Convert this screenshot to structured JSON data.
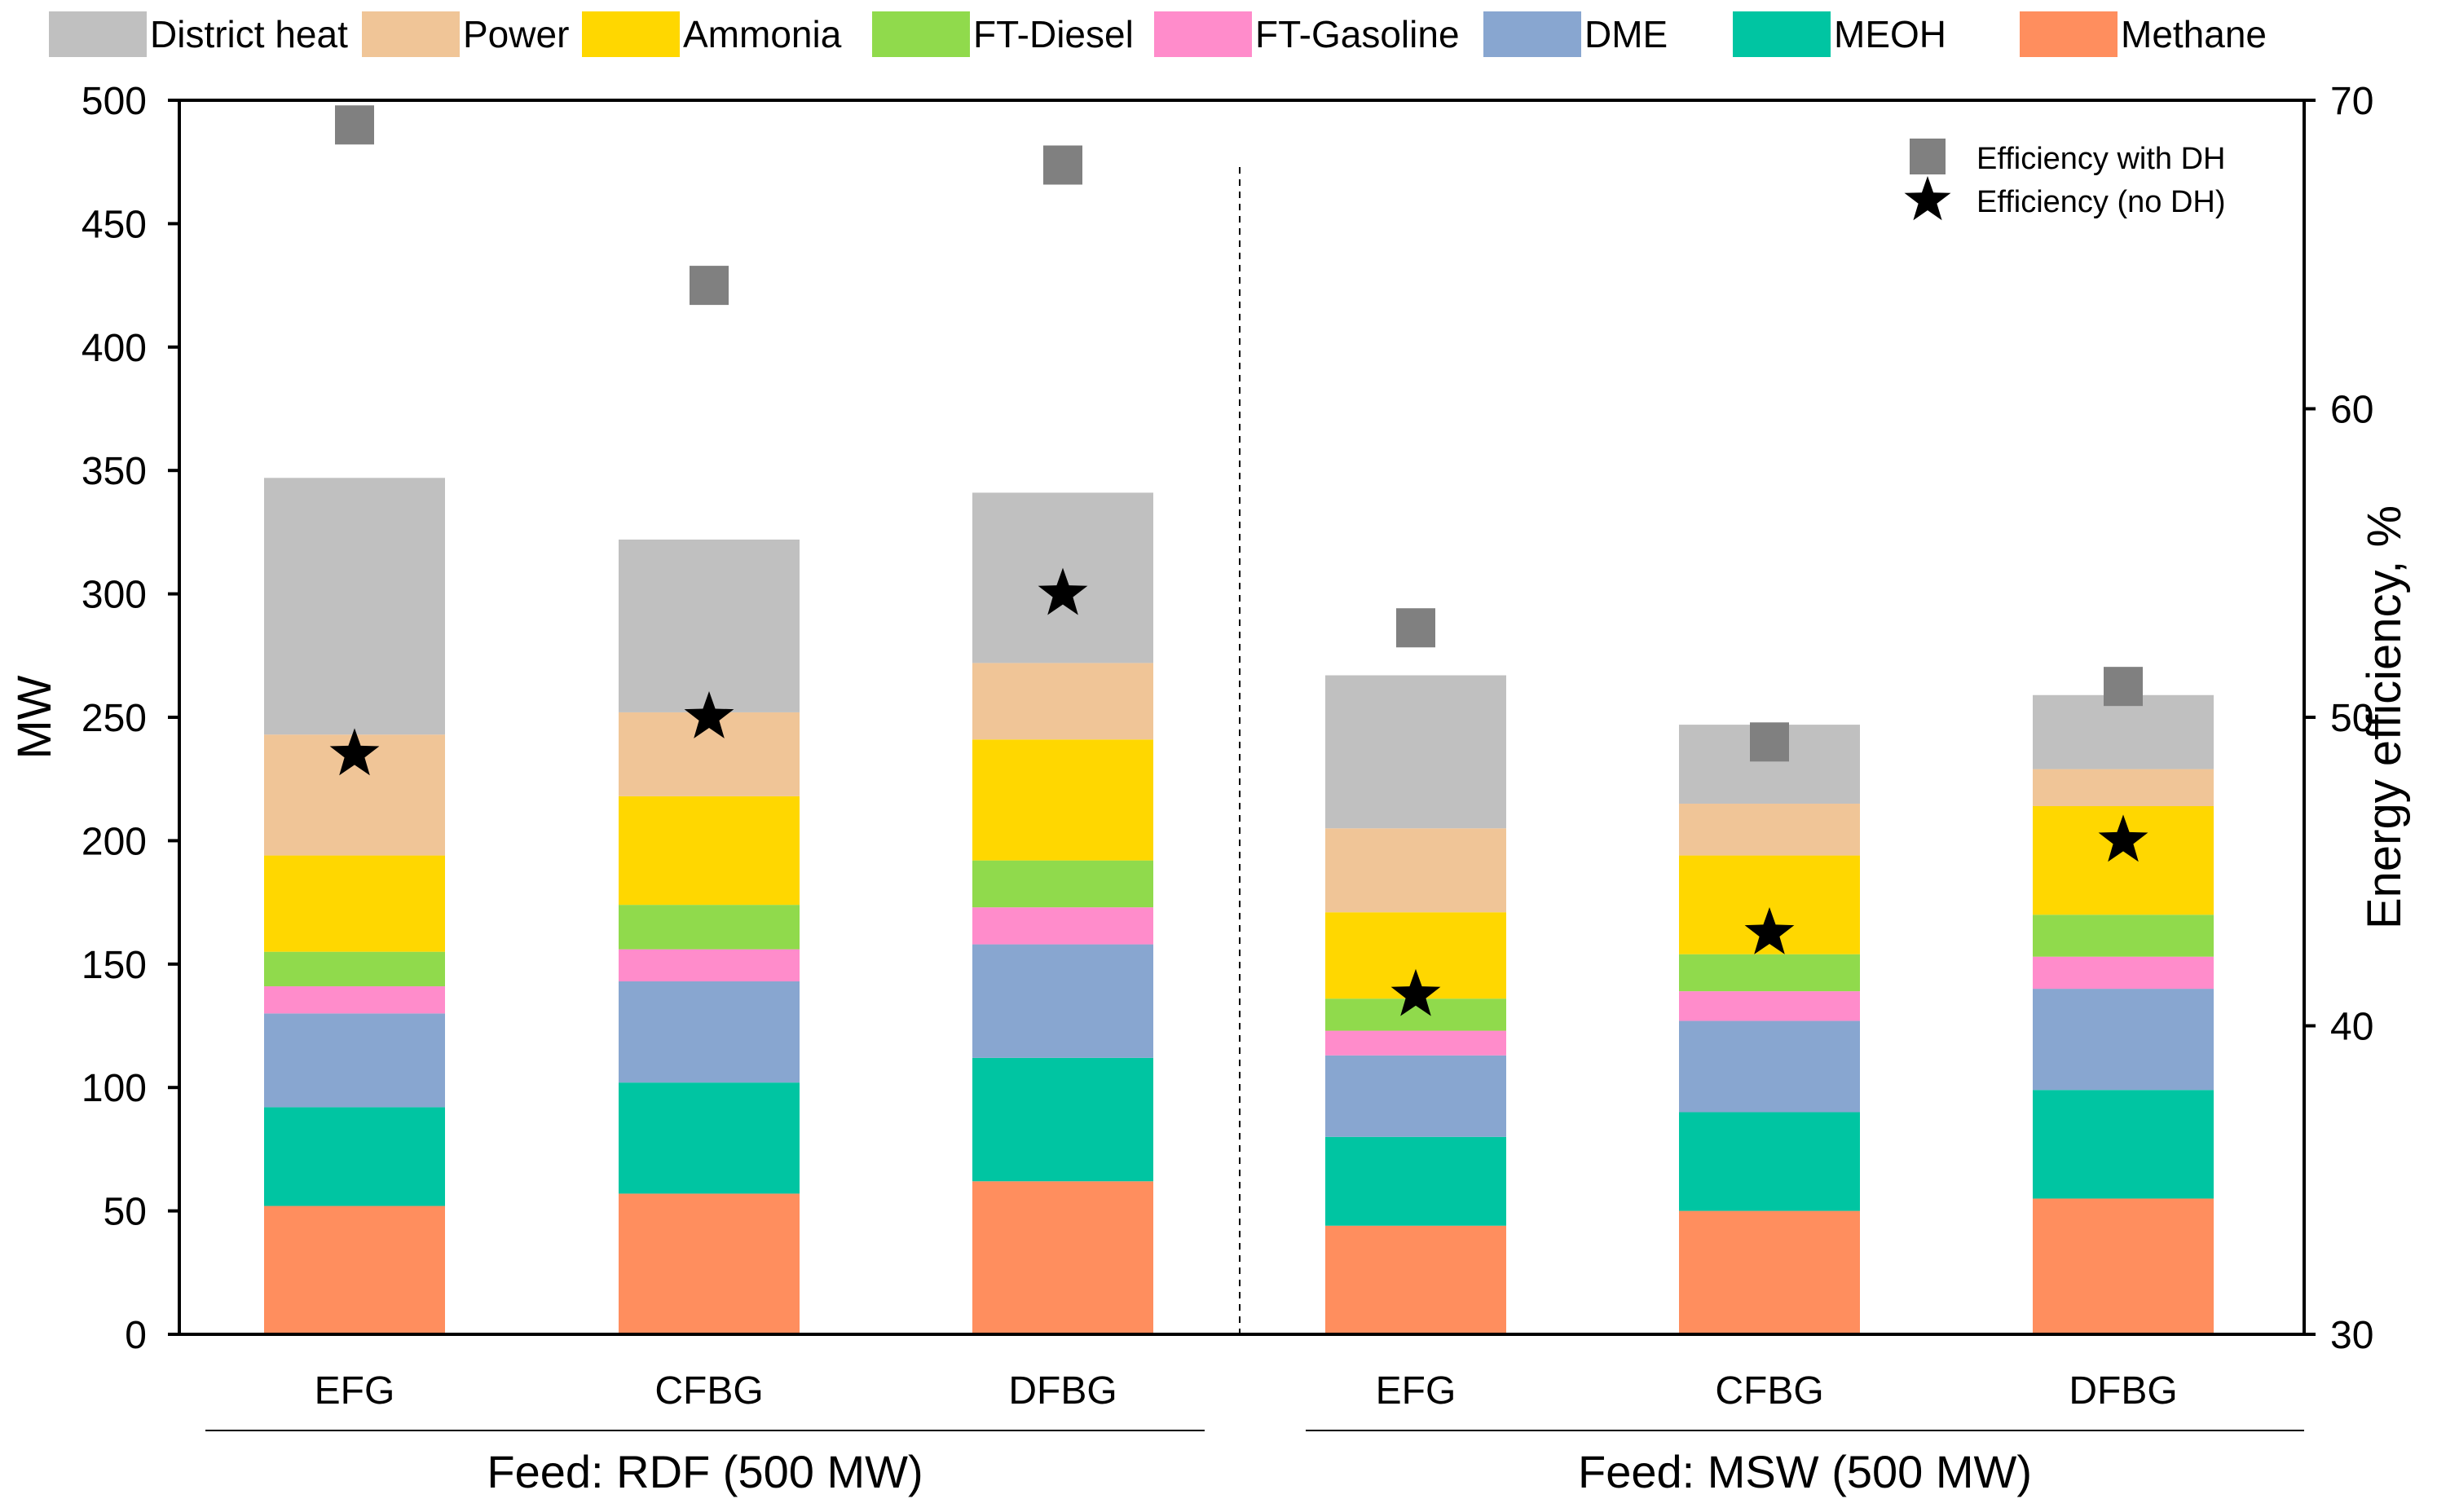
{
  "chart_data": {
    "type": "bar",
    "stacked": true,
    "title": "",
    "ylabel": "MW",
    "y2label": "Energy efficiency, %",
    "ylim": [
      0,
      500
    ],
    "y2lim": [
      30,
      70
    ],
    "yticks": [
      0,
      50,
      100,
      150,
      200,
      250,
      300,
      350,
      400,
      450,
      500
    ],
    "y2ticks": [
      30,
      40,
      50,
      60,
      70
    ],
    "grid": false,
    "legend_position": "top",
    "categories": [
      "EFG",
      "CFBG",
      "DFBG",
      "EFG",
      "CFBG",
      "DFBG"
    ],
    "groups": [
      {
        "label": "Feed: RDF (500 MW)",
        "category_indices": [
          0,
          1,
          2
        ]
      },
      {
        "label": "Feed: MSW (500 MW)",
        "category_indices": [
          3,
          4,
          5
        ]
      }
    ],
    "series": [
      {
        "name": "Methane",
        "color": "#FF8E5E",
        "values": [
          52,
          57,
          62,
          44,
          50,
          55
        ]
      },
      {
        "name": "MEOH",
        "color": "#00C5A2",
        "values": [
          40,
          45,
          50,
          36,
          40,
          44
        ]
      },
      {
        "name": "DME",
        "color": "#88A6D0",
        "values": [
          38,
          41,
          46,
          33,
          37,
          41
        ]
      },
      {
        "name": "FT-Gasoline",
        "color": "#FF8CCB",
        "values": [
          11,
          13,
          15,
          10,
          12,
          13
        ]
      },
      {
        "name": "FT-Diesel",
        "color": "#90DA4C",
        "values": [
          14,
          18,
          19,
          13,
          15,
          17
        ]
      },
      {
        "name": "Ammonia",
        "color": "#FFD700",
        "values": [
          39,
          44,
          49,
          35,
          40,
          44
        ]
      },
      {
        "name": "Power",
        "color": "#F0C597",
        "values": [
          49,
          34,
          31,
          34,
          21,
          15
        ]
      },
      {
        "name": "District heat",
        "color": "#C0C0C0",
        "values": [
          104,
          70,
          69,
          62,
          32,
          30
        ]
      }
    ],
    "legend_order": [
      "District heat",
      "Power",
      "Ammonia",
      "FT-Diesel",
      "FT-Gasoline",
      "DME",
      "MEOH",
      "Methane"
    ],
    "markers": [
      {
        "name": "Efficiency with DH",
        "shape": "square",
        "color": "#808080",
        "axis": "right",
        "values": [
          69.2,
          64.0,
          67.9,
          52.9,
          49.2,
          51.0
        ]
      },
      {
        "name": "Efficiency (no DH)",
        "shape": "star",
        "color": "#000000",
        "axis": "right",
        "values": [
          48.8,
          50.0,
          54.0,
          41.0,
          43.0,
          46.0
        ]
      }
    ]
  }
}
